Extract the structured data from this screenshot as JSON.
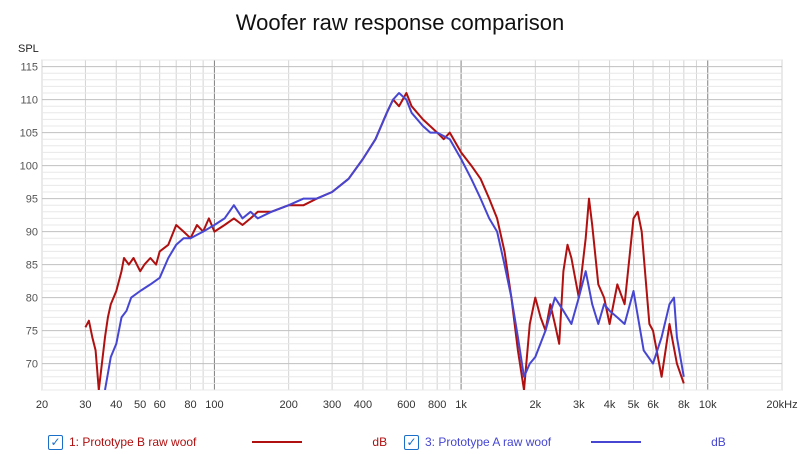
{
  "chart_data": {
    "type": "line",
    "title": "Woofer raw response comparison",
    "ylabel": "SPL",
    "xlabel": "",
    "x_scale": "log",
    "xlim": [
      20,
      20000
    ],
    "ylim": [
      66,
      116
    ],
    "grid": true,
    "y_ticks": [
      70,
      75,
      80,
      85,
      90,
      95,
      100,
      105,
      110,
      115
    ],
    "x_ticks": [
      {
        "v": 20,
        "t": "20"
      },
      {
        "v": 30,
        "t": "30"
      },
      {
        "v": 40,
        "t": "40"
      },
      {
        "v": 50,
        "t": "50"
      },
      {
        "v": 60,
        "t": "60"
      },
      {
        "v": 80,
        "t": "80"
      },
      {
        "v": 100,
        "t": "100"
      },
      {
        "v": 200,
        "t": "200"
      },
      {
        "v": 300,
        "t": "300"
      },
      {
        "v": 400,
        "t": "400"
      },
      {
        "v": 600,
        "t": "600"
      },
      {
        "v": 800,
        "t": "800"
      },
      {
        "v": 1000,
        "t": "1k"
      },
      {
        "v": 2000,
        "t": "2k"
      },
      {
        "v": 3000,
        "t": "3k"
      },
      {
        "v": 4000,
        "t": "4k"
      },
      {
        "v": 5000,
        "t": "5k"
      },
      {
        "v": 6000,
        "t": "6k"
      },
      {
        "v": 8000,
        "t": "8k"
      },
      {
        "v": 10000,
        "t": "10k"
      },
      {
        "v": 20000,
        "t": "20kHz"
      }
    ],
    "series": [
      {
        "name": "1: Prototype B raw woof",
        "unit": "dB",
        "color": "#b01010",
        "points": [
          [
            30,
            75.5
          ],
          [
            31,
            76.5
          ],
          [
            32,
            74
          ],
          [
            33,
            72
          ],
          [
            34,
            66
          ],
          [
            35,
            70
          ],
          [
            36,
            74
          ],
          [
            37,
            77
          ],
          [
            38,
            79
          ],
          [
            40,
            81
          ],
          [
            42,
            84
          ],
          [
            43,
            86
          ],
          [
            45,
            85
          ],
          [
            47,
            86
          ],
          [
            50,
            84
          ],
          [
            52,
            85
          ],
          [
            55,
            86
          ],
          [
            58,
            85
          ],
          [
            60,
            87
          ],
          [
            65,
            88
          ],
          [
            70,
            91
          ],
          [
            75,
            90
          ],
          [
            80,
            89
          ],
          [
            85,
            91
          ],
          [
            90,
            90
          ],
          [
            95,
            92
          ],
          [
            100,
            90
          ],
          [
            110,
            91
          ],
          [
            120,
            92
          ],
          [
            130,
            91
          ],
          [
            140,
            92
          ],
          [
            150,
            93
          ],
          [
            170,
            93
          ],
          [
            200,
            94
          ],
          [
            230,
            94
          ],
          [
            260,
            95
          ],
          [
            300,
            96
          ],
          [
            350,
            98
          ],
          [
            400,
            101
          ],
          [
            450,
            104
          ],
          [
            500,
            108
          ],
          [
            530,
            110
          ],
          [
            560,
            109
          ],
          [
            600,
            111
          ],
          [
            630,
            109
          ],
          [
            700,
            107
          ],
          [
            800,
            105
          ],
          [
            850,
            104
          ],
          [
            900,
            105
          ],
          [
            1000,
            102
          ],
          [
            1100,
            100
          ],
          [
            1200,
            98
          ],
          [
            1300,
            95
          ],
          [
            1400,
            92
          ],
          [
            1500,
            87
          ],
          [
            1600,
            80
          ],
          [
            1700,
            72
          ],
          [
            1800,
            66
          ],
          [
            1900,
            76
          ],
          [
            2000,
            80
          ],
          [
            2100,
            77
          ],
          [
            2200,
            75
          ],
          [
            2300,
            79
          ],
          [
            2400,
            76
          ],
          [
            2500,
            73
          ],
          [
            2600,
            84
          ],
          [
            2700,
            88
          ],
          [
            2800,
            86
          ],
          [
            3000,
            80
          ],
          [
            3200,
            89
          ],
          [
            3300,
            95
          ],
          [
            3400,
            91
          ],
          [
            3600,
            82
          ],
          [
            3800,
            80
          ],
          [
            4000,
            76
          ],
          [
            4300,
            82
          ],
          [
            4600,
            79
          ],
          [
            5000,
            92
          ],
          [
            5200,
            93
          ],
          [
            5400,
            90
          ],
          [
            5800,
            76
          ],
          [
            6000,
            75
          ],
          [
            6500,
            68
          ],
          [
            7000,
            76
          ],
          [
            7500,
            70
          ],
          [
            8000,
            67
          ]
        ]
      },
      {
        "name": "3: Prototype A raw woof",
        "unit": "dB",
        "color": "#4646d2",
        "points": [
          [
            36,
            66
          ],
          [
            38,
            71
          ],
          [
            40,
            73
          ],
          [
            42,
            77
          ],
          [
            44,
            78
          ],
          [
            46,
            80
          ],
          [
            50,
            81
          ],
          [
            55,
            82
          ],
          [
            60,
            83
          ],
          [
            65,
            86
          ],
          [
            70,
            88
          ],
          [
            75,
            89
          ],
          [
            80,
            89
          ],
          [
            90,
            90
          ],
          [
            100,
            91
          ],
          [
            110,
            92
          ],
          [
            120,
            94
          ],
          [
            130,
            92
          ],
          [
            140,
            93
          ],
          [
            150,
            92
          ],
          [
            170,
            93
          ],
          [
            200,
            94
          ],
          [
            230,
            95
          ],
          [
            260,
            95
          ],
          [
            300,
            96
          ],
          [
            350,
            98
          ],
          [
            400,
            101
          ],
          [
            450,
            104
          ],
          [
            500,
            108
          ],
          [
            530,
            110
          ],
          [
            560,
            111
          ],
          [
            600,
            110
          ],
          [
            630,
            108
          ],
          [
            700,
            106
          ],
          [
            750,
            105
          ],
          [
            800,
            105
          ],
          [
            900,
            104
          ],
          [
            1000,
            101
          ],
          [
            1100,
            98
          ],
          [
            1200,
            95
          ],
          [
            1300,
            92
          ],
          [
            1400,
            90
          ],
          [
            1500,
            85
          ],
          [
            1600,
            80
          ],
          [
            1700,
            74
          ],
          [
            1800,
            68
          ],
          [
            1900,
            70
          ],
          [
            2000,
            71
          ],
          [
            2200,
            75
          ],
          [
            2400,
            80
          ],
          [
            2600,
            78
          ],
          [
            2800,
            76
          ],
          [
            3000,
            80
          ],
          [
            3200,
            84
          ],
          [
            3400,
            79
          ],
          [
            3600,
            76
          ],
          [
            3800,
            79
          ],
          [
            4000,
            78
          ],
          [
            4300,
            77
          ],
          [
            4600,
            76
          ],
          [
            5000,
            81
          ],
          [
            5500,
            72
          ],
          [
            6000,
            70
          ],
          [
            6500,
            74
          ],
          [
            7000,
            79
          ],
          [
            7300,
            80
          ],
          [
            7500,
            74
          ],
          [
            8000,
            68
          ]
        ]
      }
    ]
  },
  "legend": [
    {
      "check": "✓",
      "label": "1: Prototype B raw woof",
      "unit": "dB",
      "color": "#b01010"
    },
    {
      "check": "✓",
      "label": "3: Prototype A raw woof",
      "unit": "dB",
      "color": "#4646d2"
    }
  ]
}
